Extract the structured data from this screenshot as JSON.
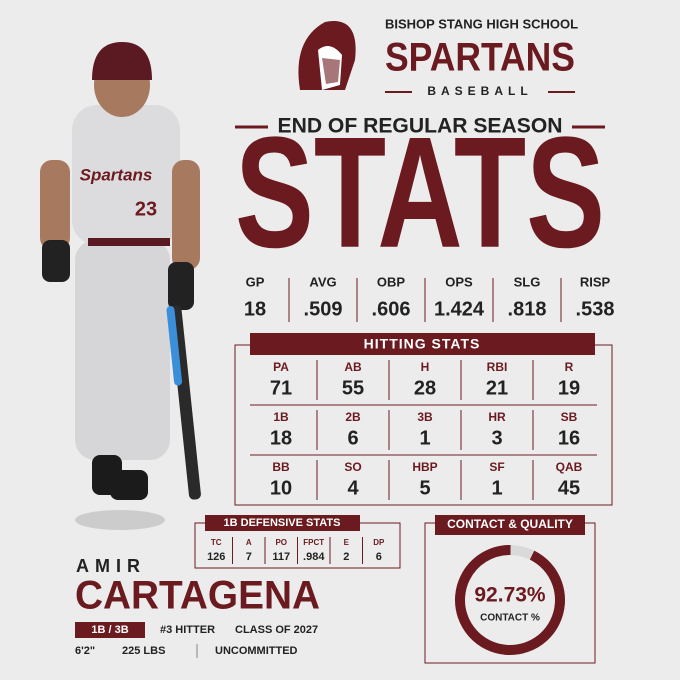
{
  "header": {
    "school": "BISHOP STANG HIGH SCHOOL",
    "team": "SPARTANS",
    "sport": "BASEBALL",
    "subtitle": "END OF REGULAR SEASON",
    "title": "STATS"
  },
  "summary": {
    "labels": [
      "GP",
      "AVG",
      "OBP",
      "OPS",
      "SLG",
      "RISP"
    ],
    "values": [
      "18",
      ".509",
      ".606",
      "1.424",
      ".818",
      ".538"
    ]
  },
  "hitting": {
    "title": "HITTING STATS",
    "rows": [
      {
        "labels": [
          "PA",
          "AB",
          "H",
          "RBI",
          "R"
        ],
        "values": [
          "71",
          "55",
          "28",
          "21",
          "19"
        ]
      },
      {
        "labels": [
          "1B",
          "2B",
          "3B",
          "HR",
          "SB"
        ],
        "values": [
          "18",
          "6",
          "1",
          "3",
          "16"
        ]
      },
      {
        "labels": [
          "BB",
          "SO",
          "HBP",
          "SF",
          "QAB"
        ],
        "values": [
          "10",
          "4",
          "5",
          "1",
          "45"
        ]
      }
    ]
  },
  "defense": {
    "title": "1B DEFENSIVE STATS",
    "labels": [
      "TC",
      "A",
      "PO",
      "FPCT",
      "E",
      "DP"
    ],
    "values": [
      "126",
      "7",
      "117",
      ".984",
      "2",
      "6"
    ]
  },
  "contact": {
    "title": "CONTACT & QUALITY",
    "value": 92.73,
    "value_label": "92.73%",
    "label": "CONTACT %"
  },
  "player": {
    "first_name": "AMIR",
    "last_name": "CARTAGENA",
    "position": "1B / 3B",
    "lineup": "#3 HITTER",
    "class": "CLASS OF 2027",
    "height": "6'2\"",
    "weight": "225 LBS",
    "status": "UNCOMMITTED",
    "jersey_text": "Spartans",
    "number": "23"
  }
}
